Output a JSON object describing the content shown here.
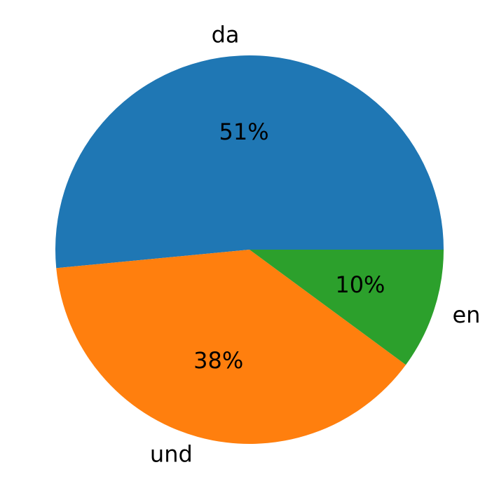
{
  "chart_data": {
    "type": "pie",
    "categories": [
      "da",
      "und",
      "en"
    ],
    "values": [
      51,
      38,
      10
    ],
    "value_labels": [
      "51%",
      "38%",
      "10%"
    ],
    "colors": [
      "#1f77b4",
      "#ff7f0e",
      "#2ca02c"
    ]
  }
}
